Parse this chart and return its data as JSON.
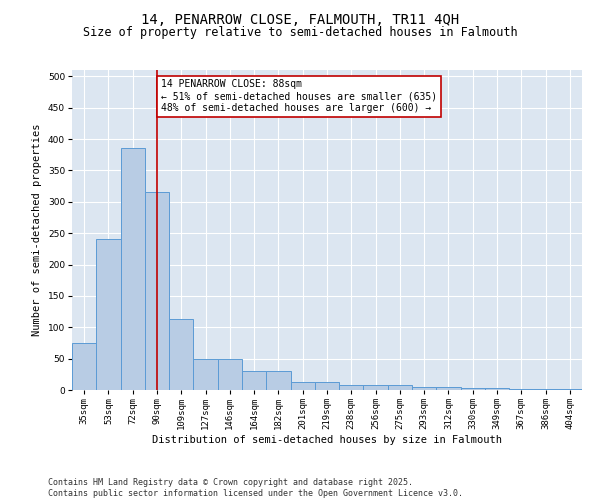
{
  "title": "14, PENARROW CLOSE, FALMOUTH, TR11 4QH",
  "subtitle": "Size of property relative to semi-detached houses in Falmouth",
  "xlabel": "Distribution of semi-detached houses by size in Falmouth",
  "ylabel": "Number of semi-detached properties",
  "bins": [
    "35sqm",
    "53sqm",
    "72sqm",
    "90sqm",
    "109sqm",
    "127sqm",
    "146sqm",
    "164sqm",
    "182sqm",
    "201sqm",
    "219sqm",
    "238sqm",
    "256sqm",
    "275sqm",
    "293sqm",
    "312sqm",
    "330sqm",
    "349sqm",
    "367sqm",
    "386sqm",
    "404sqm"
  ],
  "values": [
    75,
    240,
    385,
    315,
    113,
    50,
    50,
    30,
    30,
    13,
    13,
    8,
    8,
    8,
    5,
    5,
    3,
    3,
    1,
    1,
    2
  ],
  "bar_color": "#b8cce4",
  "bar_edge_color": "#5b9bd5",
  "vline_x_index": 3,
  "vline_color": "#c00000",
  "annotation_text": "14 PENARROW CLOSE: 88sqm\n← 51% of semi-detached houses are smaller (635)\n48% of semi-detached houses are larger (600) →",
  "annotation_box_color": "#ffffff",
  "annotation_box_edge_color": "#c00000",
  "ylim": [
    0,
    510
  ],
  "yticks": [
    0,
    50,
    100,
    150,
    200,
    250,
    300,
    350,
    400,
    450,
    500
  ],
  "bg_color": "#dce6f1",
  "grid_color": "#ffffff",
  "footer_line1": "Contains HM Land Registry data © Crown copyright and database right 2025.",
  "footer_line2": "Contains public sector information licensed under the Open Government Licence v3.0.",
  "title_fontsize": 10,
  "subtitle_fontsize": 8.5,
  "axis_label_fontsize": 7.5,
  "tick_fontsize": 6.5,
  "annotation_fontsize": 7,
  "footer_fontsize": 6
}
